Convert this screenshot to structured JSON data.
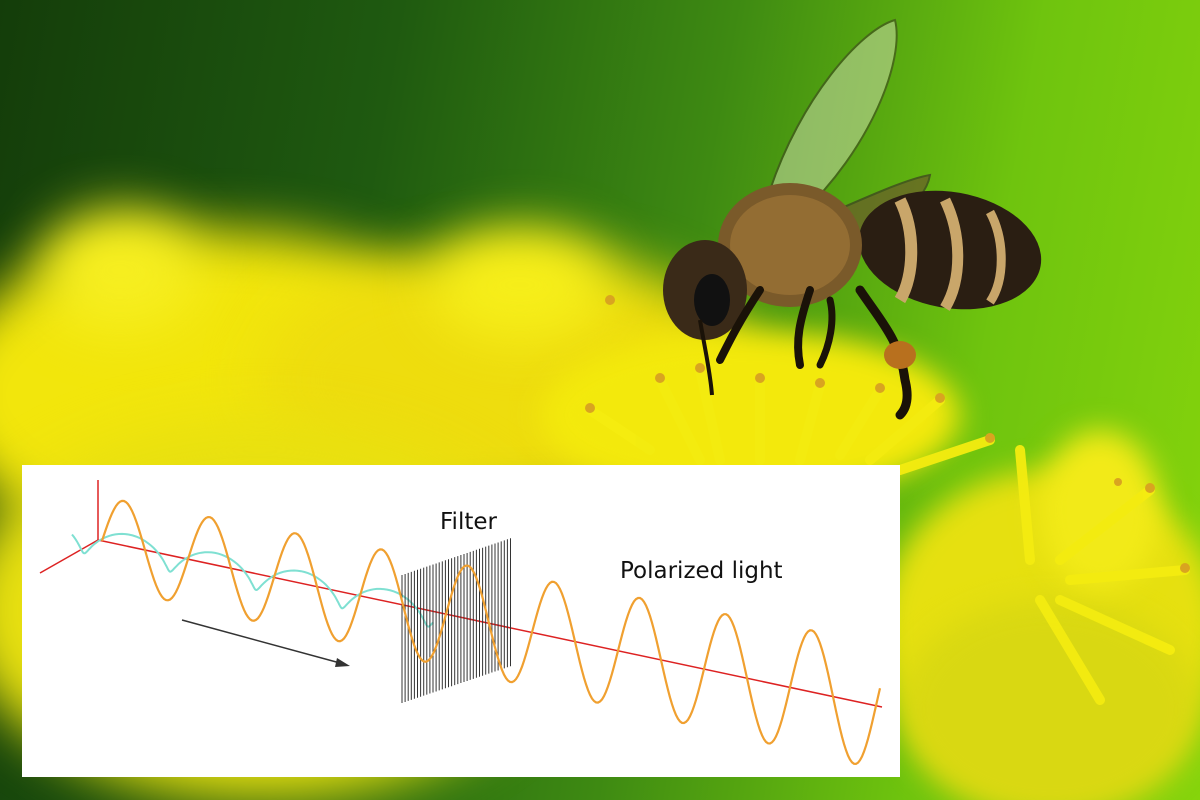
{
  "photo": {
    "subject": "honeybee-on-yellow-flowers",
    "colors": {
      "background_dark": "#143d0a",
      "background_light": "#86d40c",
      "flower": "#f2e80f",
      "bee_body": "#2a1e12",
      "bee_stripe": "#c9a66a"
    }
  },
  "diagram": {
    "filter_label": "Filter",
    "output_label": "Polarized light",
    "colors": {
      "wave": "#f0a030",
      "wave_unpolarized": "#7fe0d2",
      "axis": "#dd2222",
      "filter": "#333333",
      "arrow": "#333333"
    }
  }
}
